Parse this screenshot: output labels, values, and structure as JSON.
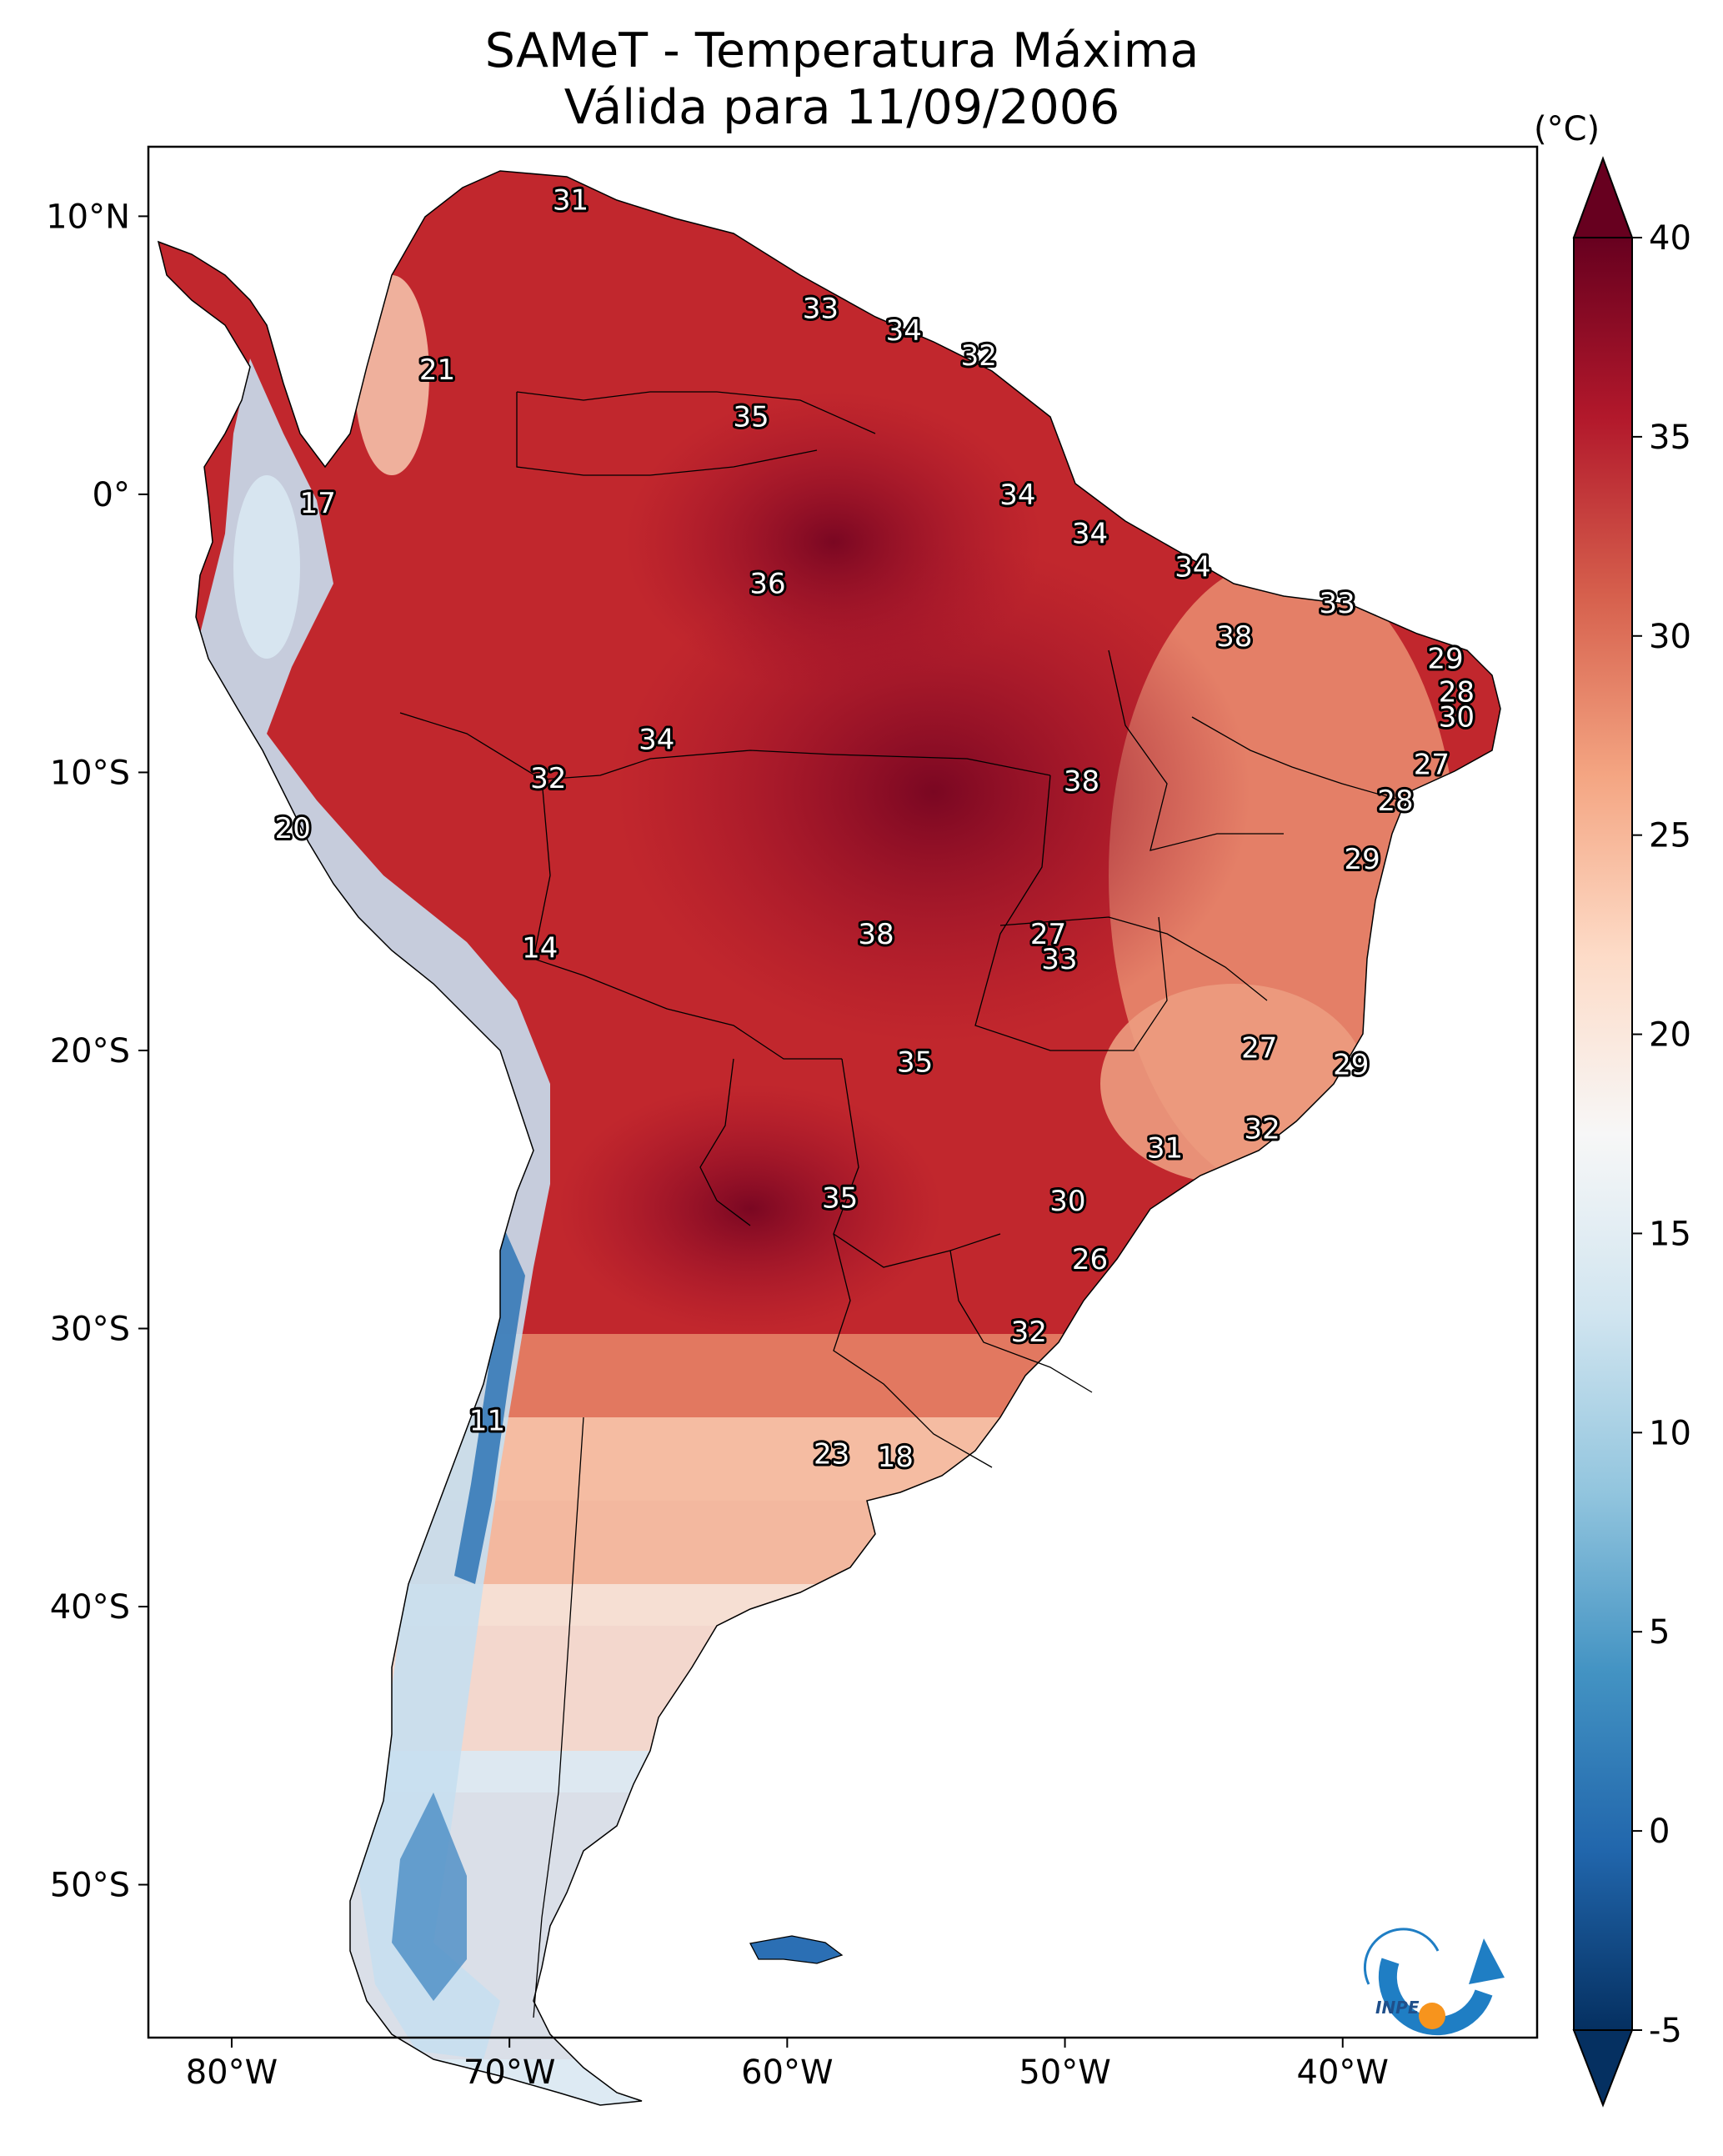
{
  "title": {
    "line1": "SAMeT - Temperatura Máxima",
    "line2": "Válida para 11/09/2006"
  },
  "map": {
    "projection": "PlateCarree",
    "lon_range": [
      -83,
      -33
    ],
    "lat_range": [
      -55.5,
      12.5
    ],
    "lon_ticks": [
      {
        "lon": -80,
        "label": "80°W"
      },
      {
        "lon": -70,
        "label": "70°W"
      },
      {
        "lon": -60,
        "label": "60°W"
      },
      {
        "lon": -50,
        "label": "50°W"
      },
      {
        "lon": -40,
        "label": "40°W"
      }
    ],
    "lat_ticks": [
      {
        "lat": 10,
        "label": "10°N"
      },
      {
        "lat": 0,
        "label": "0°"
      },
      {
        "lat": -10,
        "label": "10°S"
      },
      {
        "lat": -20,
        "label": "20°S"
      },
      {
        "lat": -30,
        "label": "30°S"
      },
      {
        "lat": -40,
        "label": "40°S"
      },
      {
        "lat": -50,
        "label": "50°S"
      }
    ],
    "labels": [
      {
        "v": "31",
        "lon": -67.8,
        "lat": 10.6
      },
      {
        "v": "33",
        "lon": -58.8,
        "lat": 6.7
      },
      {
        "v": "34",
        "lon": -55.8,
        "lat": 5.9
      },
      {
        "v": "32",
        "lon": -53.1,
        "lat": 5.0
      },
      {
        "v": "21",
        "lon": -72.6,
        "lat": 4.5
      },
      {
        "v": "35",
        "lon": -61.3,
        "lat": 2.8
      },
      {
        "v": "34",
        "lon": -51.7,
        "lat": 0.0
      },
      {
        "v": "17",
        "lon": -76.9,
        "lat": -0.3
      },
      {
        "v": "34",
        "lon": -49.1,
        "lat": -1.4
      },
      {
        "v": "34",
        "lon": -45.4,
        "lat": -2.6
      },
      {
        "v": "36",
        "lon": -60.7,
        "lat": -3.2
      },
      {
        "v": "33",
        "lon": -40.2,
        "lat": -3.9
      },
      {
        "v": "38",
        "lon": -43.9,
        "lat": -5.1
      },
      {
        "v": "29",
        "lon": -36.3,
        "lat": -5.9
      },
      {
        "v": "28",
        "lon": -35.9,
        "lat": -7.1
      },
      {
        "v": "30",
        "lon": -35.9,
        "lat": -8.0
      },
      {
        "v": "34",
        "lon": -64.7,
        "lat": -8.8
      },
      {
        "v": "27",
        "lon": -36.8,
        "lat": -9.7
      },
      {
        "v": "32",
        "lon": -68.6,
        "lat": -10.2
      },
      {
        "v": "38",
        "lon": -49.4,
        "lat": -10.3
      },
      {
        "v": "28",
        "lon": -38.1,
        "lat": -11.0
      },
      {
        "v": "20",
        "lon": -77.8,
        "lat": -12.0
      },
      {
        "v": "29",
        "lon": -39.3,
        "lat": -13.1
      },
      {
        "v": "27",
        "lon": -50.6,
        "lat": -15.8
      },
      {
        "v": "38",
        "lon": -56.8,
        "lat": -15.8
      },
      {
        "v": "14",
        "lon": -68.9,
        "lat": -16.3
      },
      {
        "v": "33",
        "lon": -50.2,
        "lat": -16.7
      },
      {
        "v": "27",
        "lon": -43.0,
        "lat": -19.9
      },
      {
        "v": "35",
        "lon": -55.4,
        "lat": -20.4
      },
      {
        "v": "29",
        "lon": -39.7,
        "lat": -20.5
      },
      {
        "v": "32",
        "lon": -42.9,
        "lat": -22.8
      },
      {
        "v": "31",
        "lon": -46.4,
        "lat": -23.5
      },
      {
        "v": "35",
        "lon": -58.1,
        "lat": -25.3
      },
      {
        "v": "30",
        "lon": -49.9,
        "lat": -25.4
      },
      {
        "v": "26",
        "lon": -49.1,
        "lat": -27.5
      },
      {
        "v": "32",
        "lon": -51.3,
        "lat": -30.1
      },
      {
        "v": "11",
        "lon": -70.8,
        "lat": -33.3
      },
      {
        "v": "23",
        "lon": -58.4,
        "lat": -34.5
      },
      {
        "v": "18",
        "lon": -56.1,
        "lat": -34.6
      }
    ]
  },
  "colorbar": {
    "unit": "(°C)",
    "range": [
      -5,
      40
    ],
    "ticks": [
      {
        "v": 40,
        "label": "40"
      },
      {
        "v": 35,
        "label": "35"
      },
      {
        "v": 30,
        "label": "30"
      },
      {
        "v": 25,
        "label": "25"
      },
      {
        "v": 20,
        "label": "20"
      },
      {
        "v": 15,
        "label": "15"
      },
      {
        "v": 10,
        "label": "10"
      },
      {
        "v": 5,
        "label": "5"
      },
      {
        "v": 0,
        "label": "0"
      },
      {
        "v": -5,
        "label": "-5"
      }
    ],
    "colors": [
      "#053061",
      "#2166ac",
      "#4393c3",
      "#92c5de",
      "#d1e5f0",
      "#f7f7f7",
      "#fddbc7",
      "#f4a582",
      "#d6604d",
      "#b2182b",
      "#67001f"
    ]
  },
  "logo": {
    "text": "INPE",
    "ring_color": "#1f7ec4",
    "dot_color": "#f7941d"
  }
}
